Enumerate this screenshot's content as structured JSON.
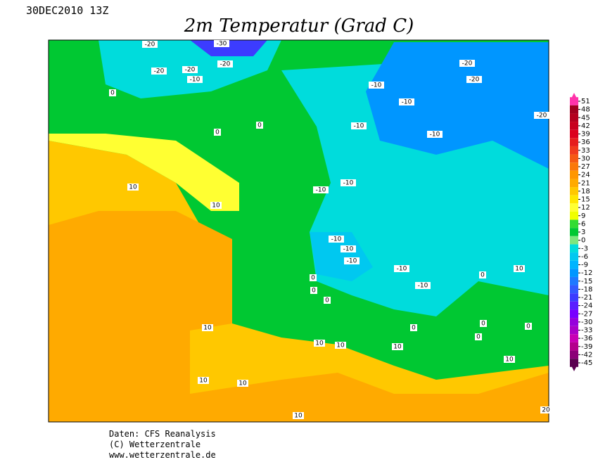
{
  "header": {
    "run": "30DEC2010 13Z",
    "title": "2m Temperatur (Grad C)"
  },
  "map": {
    "contour_labels": [
      -20,
      -30,
      -20,
      -20,
      -20,
      -10,
      0,
      -20,
      -20,
      -10,
      -10,
      -20,
      0,
      0,
      -10,
      -10,
      10,
      -10,
      -10,
      10,
      -10,
      -10,
      -10,
      -10,
      10,
      0,
      0,
      0,
      -10,
      0,
      10,
      0,
      0,
      0,
      0,
      10,
      10,
      10,
      10,
      10,
      10,
      10,
      20
    ]
  },
  "legend": {
    "ticks": [
      51,
      48,
      45,
      42,
      39,
      36,
      33,
      30,
      27,
      24,
      21,
      18,
      15,
      12,
      9,
      6,
      3,
      0,
      -3,
      -6,
      -9,
      -12,
      -15,
      -18,
      -21,
      -24,
      -27,
      -30,
      -33,
      -36,
      -39,
      -42,
      -45
    ],
    "colors": [
      "#ff33aa",
      "#a0001e",
      "#b4001e",
      "#c8001e",
      "#dc001e",
      "#e61e1e",
      "#f03c1e",
      "#f55a14",
      "#fa780a",
      "#ff9600",
      "#ffaa00",
      "#ffc800",
      "#ffe600",
      "#ffff32",
      "#f0ff00",
      "#32dc32",
      "#00c832",
      "#7de67d",
      "#00dcdc",
      "#00c8f0",
      "#00b4ff",
      "#0096ff",
      "#1e78ff",
      "#325aff",
      "#3c3cff",
      "#5a1eff",
      "#7800ff",
      "#9600dc",
      "#aa00c8",
      "#c800b4",
      "#b4008c",
      "#8c0078",
      "#5a0050"
    ]
  },
  "footer": {
    "lines": [
      "Daten: CFS Reanalysis",
      "(C) Wetterzentrale",
      "www.wetterzentrale.de"
    ]
  }
}
